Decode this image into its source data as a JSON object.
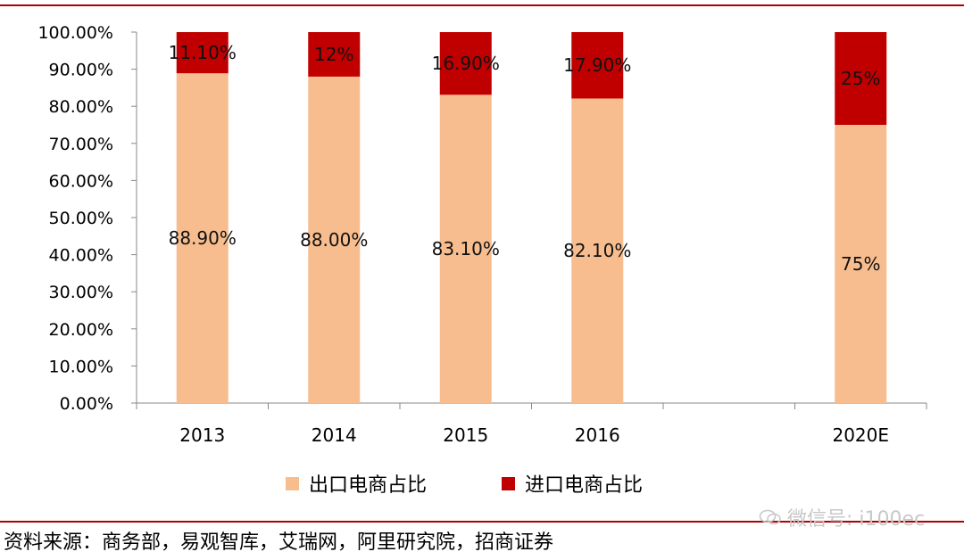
{
  "chart_data": {
    "type": "bar",
    "stacked": true,
    "categories": [
      "2013",
      "2014",
      "2015",
      "2016",
      "2020E"
    ],
    "series": [
      {
        "name": "出口电商占比",
        "color": "#f7bd8e",
        "values": [
          88.9,
          88.0,
          83.1,
          82.1,
          75
        ],
        "labels": [
          "88.90%",
          "88.00%",
          "83.10%",
          "82.10%",
          "75%"
        ]
      },
      {
        "name": "进口电商占比",
        "color": "#c00000",
        "values": [
          11.1,
          12,
          16.9,
          17.9,
          25
        ],
        "labels": [
          "11.10%",
          "12%",
          "16.90%",
          "17.90%",
          "25%"
        ]
      }
    ],
    "yticks": [
      "0.00%",
      "10.00%",
      "20.00%",
      "30.00%",
      "40.00%",
      "50.00%",
      "60.00%",
      "70.00%",
      "80.00%",
      "90.00%",
      "100.00%"
    ],
    "ylim": [
      0,
      100
    ],
    "grid": false,
    "legend": "bottom",
    "title": "",
    "xlabel": "",
    "ylabel": ""
  },
  "source_text": "资料来源：商务部，易观智库，艾瑞网，阿里研究院，招商证券",
  "watermark_text": "微信号: i100ec"
}
